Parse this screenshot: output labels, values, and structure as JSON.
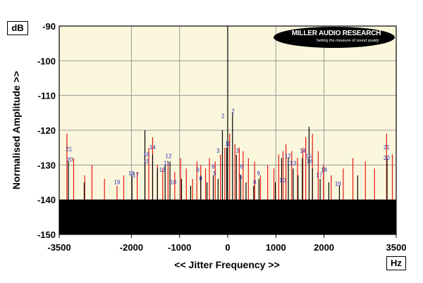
{
  "units": {
    "y": "dB",
    "x": "Hz"
  },
  "logo": {
    "title": "MILLER AUDIO RESEARCH",
    "tagline": "Setting the measure of sound quality"
  },
  "chart_data": {
    "type": "line",
    "title": "",
    "xlabel": "<< Jitter Frequency >>",
    "ylabel": "Normalised Amplitude >>",
    "xlim": [
      -3500,
      3500
    ],
    "ylim": [
      -150,
      -90
    ],
    "xticks": [
      -3500,
      -2000,
      -1000,
      0,
      1000,
      2000,
      3500
    ],
    "yticks": [
      -90,
      -100,
      -110,
      -120,
      -130,
      -140,
      -150
    ],
    "grid": true,
    "background": "#fbf7dc",
    "noise_floor_db": -140,
    "series": [
      {
        "color": "#e8170e",
        "values": [
          {
            "x": -3340,
            "y": -121
          },
          {
            "x": -3200,
            "y": -128
          },
          {
            "x": -2970,
            "y": -133
          },
          {
            "x": -2820,
            "y": -130
          },
          {
            "x": -2560,
            "y": -134
          },
          {
            "x": -2300,
            "y": -136
          },
          {
            "x": -2160,
            "y": -133
          },
          {
            "x": -1990,
            "y": -134
          },
          {
            "x": -1880,
            "y": -132
          },
          {
            "x": -1720,
            "y": -127
          },
          {
            "x": -1640,
            "y": -125
          },
          {
            "x": -1560,
            "y": -122
          },
          {
            "x": -1460,
            "y": -130
          },
          {
            "x": -1350,
            "y": -131
          },
          {
            "x": -1240,
            "y": -129
          },
          {
            "x": -1100,
            "y": -132
          },
          {
            "x": -980,
            "y": -128
          },
          {
            "x": -860,
            "y": -131
          },
          {
            "x": -730,
            "y": -134
          },
          {
            "x": -640,
            "y": -129
          },
          {
            "x": -560,
            "y": -130
          },
          {
            "x": -460,
            "y": -131
          },
          {
            "x": -380,
            "y": -128
          },
          {
            "x": -260,
            "y": -129
          },
          {
            "x": -150,
            "y": -127
          },
          {
            "x": -60,
            "y": -125
          },
          {
            "x": 40,
            "y": -121
          },
          {
            "x": 150,
            "y": -124
          },
          {
            "x": 240,
            "y": -125
          },
          {
            "x": 320,
            "y": -126
          },
          {
            "x": 430,
            "y": -128
          },
          {
            "x": 560,
            "y": -129
          },
          {
            "x": 680,
            "y": -133
          },
          {
            "x": 830,
            "y": -130
          },
          {
            "x": 960,
            "y": -131
          },
          {
            "x": 1060,
            "y": -127
          },
          {
            "x": 1150,
            "y": -126
          },
          {
            "x": 1210,
            "y": -124
          },
          {
            "x": 1330,
            "y": -126
          },
          {
            "x": 1450,
            "y": -128
          },
          {
            "x": 1560,
            "y": -125
          },
          {
            "x": 1620,
            "y": -122
          },
          {
            "x": 1760,
            "y": -121
          },
          {
            "x": 1880,
            "y": -126
          },
          {
            "x": 1990,
            "y": -130
          },
          {
            "x": 2150,
            "y": -133
          },
          {
            "x": 2400,
            "y": -131
          },
          {
            "x": 2600,
            "y": -128
          },
          {
            "x": 2860,
            "y": -129
          },
          {
            "x": 3050,
            "y": -131
          },
          {
            "x": 3300,
            "y": -121
          },
          {
            "x": 3420,
            "y": -127
          }
        ]
      },
      {
        "color": "#000000",
        "values": [
          {
            "x": -3310,
            "y": -129
          },
          {
            "x": -2980,
            "y": -135
          },
          {
            "x": -1990,
            "y": -133
          },
          {
            "x": -1720,
            "y": -120
          },
          {
            "x": -1560,
            "y": -127
          },
          {
            "x": -1460,
            "y": -131
          },
          {
            "x": -1300,
            "y": -130
          },
          {
            "x": -1200,
            "y": -129
          },
          {
            "x": -960,
            "y": -134
          },
          {
            "x": -770,
            "y": -136
          },
          {
            "x": -560,
            "y": -133
          },
          {
            "x": -430,
            "y": -135
          },
          {
            "x": -300,
            "y": -133
          },
          {
            "x": -200,
            "y": -134
          },
          {
            "x": -110,
            "y": -120
          },
          {
            "x": -20,
            "y": -125
          },
          {
            "x": 0,
            "y": -90
          },
          {
            "x": 100,
            "y": -115
          },
          {
            "x": 180,
            "y": -127
          },
          {
            "x": 270,
            "y": -133
          },
          {
            "x": 380,
            "y": -135
          },
          {
            "x": 540,
            "y": -136
          },
          {
            "x": 650,
            "y": -134
          },
          {
            "x": 990,
            "y": -135
          },
          {
            "x": 1120,
            "y": -128
          },
          {
            "x": 1260,
            "y": -128
          },
          {
            "x": 1360,
            "y": -131
          },
          {
            "x": 1460,
            "y": -133
          },
          {
            "x": 1550,
            "y": -128
          },
          {
            "x": 1690,
            "y": -119
          },
          {
            "x": 1760,
            "y": -131
          },
          {
            "x": 1920,
            "y": -134
          },
          {
            "x": 2100,
            "y": -135
          },
          {
            "x": 2320,
            "y": -136
          },
          {
            "x": 2700,
            "y": -133
          },
          {
            "x": 3310,
            "y": -128
          }
        ]
      }
    ],
    "annotations": [
      {
        "text": "2",
        "x": -100,
        "y": -116.5
      },
      {
        "text": "2",
        "x": 110,
        "y": -115
      },
      {
        "text": "1",
        "x": -25,
        "y": -124.5
      },
      {
        "text": "1",
        "x": 25,
        "y": -124.5
      },
      {
        "text": "3",
        "x": -200,
        "y": -126.5
      },
      {
        "text": "3",
        "x": 200,
        "y": -126.5
      },
      {
        "text": "5",
        "x": -270,
        "y": -133
      },
      {
        "text": "5",
        "x": 270,
        "y": -134
      },
      {
        "text": "6",
        "x": -300,
        "y": -131
      },
      {
        "text": "6",
        "x": 290,
        "y": -131
      },
      {
        "text": "9",
        "x": -620,
        "y": -132
      },
      {
        "text": "9",
        "x": 640,
        "y": -133
      },
      {
        "text": "8",
        "x": -560,
        "y": -134.5
      },
      {
        "text": "8",
        "x": 560,
        "y": -135.5
      },
      {
        "text": "10",
        "x": -1130,
        "y": -135.5
      },
      {
        "text": "10",
        "x": 1140,
        "y": -135
      },
      {
        "text": "11",
        "x": -1270,
        "y": -130
      },
      {
        "text": "11",
        "x": 1290,
        "y": -130
      },
      {
        "text": "12",
        "x": -1230,
        "y": -128
      },
      {
        "text": "12",
        "x": 1250,
        "y": -128
      },
      {
        "text": "13",
        "x": -1360,
        "y": -132
      },
      {
        "text": "13",
        "x": 1360,
        "y": -130
      },
      {
        "text": "14",
        "x": -1560,
        "y": -125.5
      },
      {
        "text": "14",
        "x": 1560,
        "y": -126.5
      },
      {
        "text": "15",
        "x": -1690,
        "y": -129.5
      },
      {
        "text": "15",
        "x": 1680,
        "y": -128
      },
      {
        "text": "16",
        "x": -1690,
        "y": -127.5
      },
      {
        "text": "16",
        "x": 1700,
        "y": -129.5
      },
      {
        "text": "17",
        "x": -1910,
        "y": -133.5
      },
      {
        "text": "17",
        "x": 1900,
        "y": -133.5
      },
      {
        "text": "18",
        "x": -2000,
        "y": -133
      },
      {
        "text": "18",
        "x": 2000,
        "y": -132
      },
      {
        "text": "19",
        "x": -2300,
        "y": -135.5
      },
      {
        "text": "19",
        "x": 2290,
        "y": -136
      },
      {
        "text": "20",
        "x": -3280,
        "y": -129
      },
      {
        "text": "20",
        "x": 3300,
        "y": -128.5
      },
      {
        "text": "21",
        "x": -3300,
        "y": -126
      },
      {
        "text": "21",
        "x": 3300,
        "y": -125.5
      }
    ]
  }
}
